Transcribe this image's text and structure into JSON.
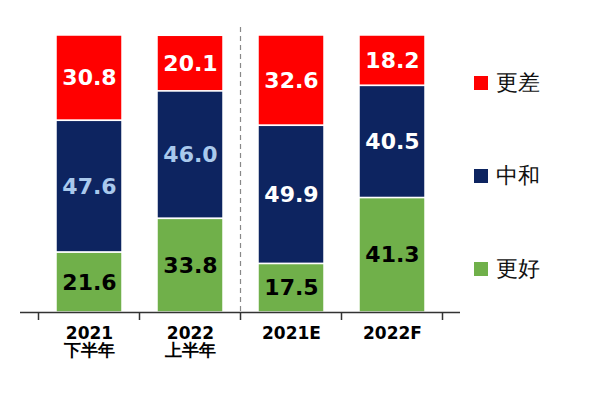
{
  "chart_data": {
    "type": "bar",
    "stacked": true,
    "data_labels": true,
    "tick_labels": "x",
    "legend": "right",
    "categories": [
      "2021\n下半年",
      "2022\n上半年",
      "2021E",
      "2022F"
    ],
    "ylim": [
      0,
      100
    ],
    "series": [
      {
        "name": "更差",
        "color": "#ff0000",
        "values": [
          30.8,
          20.1,
          32.6,
          18.2
        ]
      },
      {
        "name": "中和",
        "color": "#0d2460",
        "values": [
          47.6,
          46.0,
          49.9,
          40.5
        ],
        "value_labels": [
          "47.6",
          "46.0",
          "49.9",
          "40.5"
        ]
      },
      {
        "name": "更好",
        "color": "#70b04a",
        "values": [
          21.6,
          33.8,
          17.5,
          41.3
        ]
      }
    ]
  }
}
